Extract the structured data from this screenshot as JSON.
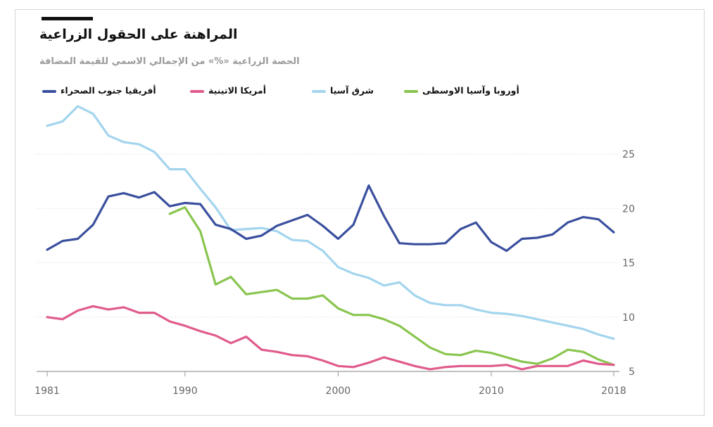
{
  "title": "المراهنة على الحقول الزراعية",
  "subtitle": "الحصة الزراعية «%» من الإجمالي الاسمي للقيمة المضافة",
  "chart_data": {
    "type": "line",
    "title": "المراهنة على الحقول الزراعية",
    "subtitle": "الحصة الزراعية «%» من الإجمالي الاسمي للقيمة المضافة",
    "xlabel": "",
    "ylabel": "",
    "xlim": [
      1981,
      2018
    ],
    "ylim": [
      5,
      29.5
    ],
    "y_ticks": [
      5,
      10,
      15,
      20,
      25
    ],
    "x_ticks": [
      1981,
      1990,
      2000,
      2010,
      2018
    ],
    "grid": true,
    "legend_position": "top",
    "series": [
      {
        "name": "أفريقيا جنوب الصحراء",
        "color": "#3a4f9e",
        "points": [
          [
            1981,
            16.2
          ],
          [
            1982,
            17.0
          ],
          [
            1983,
            17.2
          ],
          [
            1984,
            18.5
          ],
          [
            1985,
            21.1
          ],
          [
            1986,
            21.4
          ],
          [
            1987,
            21.0
          ],
          [
            1988,
            21.5
          ],
          [
            1989,
            20.2
          ],
          [
            1990,
            20.5
          ],
          [
            1991,
            20.4
          ],
          [
            1992,
            18.5
          ],
          [
            1993,
            18.1
          ],
          [
            1994,
            17.2
          ],
          [
            1995,
            17.5
          ],
          [
            1996,
            18.4
          ],
          [
            1997,
            18.9
          ],
          [
            1998,
            19.4
          ],
          [
            1999,
            18.4
          ],
          [
            2000,
            17.2
          ],
          [
            2001,
            18.5
          ],
          [
            2002,
            22.1
          ],
          [
            2003,
            19.3
          ],
          [
            2004,
            16.8
          ],
          [
            2005,
            16.7
          ],
          [
            2006,
            16.7
          ],
          [
            2007,
            16.8
          ],
          [
            2008,
            18.1
          ],
          [
            2009,
            18.7
          ],
          [
            2010,
            16.9
          ],
          [
            2011,
            16.1
          ],
          [
            2012,
            17.2
          ],
          [
            2013,
            17.3
          ],
          [
            2014,
            17.6
          ],
          [
            2015,
            18.7
          ],
          [
            2016,
            19.2
          ],
          [
            2017,
            19.0
          ],
          [
            2018,
            17.8
          ]
        ]
      },
      {
        "name": "أمريكا الاتينية",
        "color": "#e05b8c",
        "points": [
          [
            1981,
            10.0
          ],
          [
            1982,
            9.8
          ],
          [
            1983,
            10.6
          ],
          [
            1984,
            11.0
          ],
          [
            1985,
            10.7
          ],
          [
            1986,
            10.9
          ],
          [
            1987,
            10.4
          ],
          [
            1988,
            10.4
          ],
          [
            1989,
            9.6
          ],
          [
            1990,
            9.2
          ],
          [
            1991,
            8.7
          ],
          [
            1992,
            8.3
          ],
          [
            1993,
            7.6
          ],
          [
            1994,
            8.2
          ],
          [
            1995,
            7.0
          ],
          [
            1996,
            6.8
          ],
          [
            1997,
            6.5
          ],
          [
            1998,
            6.4
          ],
          [
            1999,
            6.0
          ],
          [
            2000,
            5.5
          ],
          [
            2001,
            5.4
          ],
          [
            2002,
            5.8
          ],
          [
            2003,
            6.3
          ],
          [
            2004,
            5.9
          ],
          [
            2005,
            5.5
          ],
          [
            2006,
            5.2
          ],
          [
            2007,
            5.4
          ],
          [
            2008,
            5.5
          ],
          [
            2009,
            5.5
          ],
          [
            2010,
            5.5
          ],
          [
            2011,
            5.6
          ],
          [
            2012,
            5.2
          ],
          [
            2013,
            5.5
          ],
          [
            2014,
            5.5
          ],
          [
            2015,
            5.5
          ],
          [
            2016,
            6.0
          ],
          [
            2017,
            5.7
          ],
          [
            2018,
            5.6
          ]
        ]
      },
      {
        "name": "شرق آسيا",
        "color": "#a3d5ee",
        "points": [
          [
            1981,
            27.6
          ],
          [
            1982,
            28.0
          ],
          [
            1983,
            29.4
          ],
          [
            1984,
            28.7
          ],
          [
            1985,
            26.7
          ],
          [
            1986,
            26.1
          ],
          [
            1987,
            25.9
          ],
          [
            1988,
            25.2
          ],
          [
            1989,
            23.6
          ],
          [
            1990,
            23.6
          ],
          [
            1991,
            21.8
          ],
          [
            1992,
            20.1
          ],
          [
            1993,
            18.0
          ],
          [
            1994,
            18.1
          ],
          [
            1995,
            18.2
          ],
          [
            1996,
            17.9
          ],
          [
            1997,
            17.1
          ],
          [
            1998,
            17.0
          ],
          [
            1999,
            16.1
          ],
          [
            2000,
            14.6
          ],
          [
            2001,
            14.0
          ],
          [
            2002,
            13.6
          ],
          [
            2003,
            12.9
          ],
          [
            2004,
            13.2
          ],
          [
            2005,
            12.0
          ],
          [
            2006,
            11.3
          ],
          [
            2007,
            11.1
          ],
          [
            2008,
            11.1
          ],
          [
            2009,
            10.7
          ],
          [
            2010,
            10.4
          ],
          [
            2011,
            10.3
          ],
          [
            2012,
            10.1
          ],
          [
            2013,
            9.8
          ],
          [
            2014,
            9.5
          ],
          [
            2015,
            9.2
          ],
          [
            2016,
            8.9
          ],
          [
            2017,
            8.4
          ],
          [
            2018,
            8.0
          ]
        ]
      },
      {
        "name": "أوروبا وآسيا الاوسطى",
        "color": "#8ac54f",
        "points": [
          [
            1989,
            19.5
          ],
          [
            1990,
            20.1
          ],
          [
            1991,
            17.9
          ],
          [
            1992,
            13.0
          ],
          [
            1993,
            13.7
          ],
          [
            1994,
            12.1
          ],
          [
            1995,
            12.3
          ],
          [
            1996,
            12.5
          ],
          [
            1997,
            11.7
          ],
          [
            1998,
            11.7
          ],
          [
            1999,
            12.0
          ],
          [
            2000,
            10.8
          ],
          [
            2001,
            10.2
          ],
          [
            2002,
            10.2
          ],
          [
            2003,
            9.8
          ],
          [
            2004,
            9.2
          ],
          [
            2005,
            8.2
          ],
          [
            2006,
            7.2
          ],
          [
            2007,
            6.6
          ],
          [
            2008,
            6.5
          ],
          [
            2009,
            6.9
          ],
          [
            2010,
            6.7
          ],
          [
            2011,
            6.3
          ],
          [
            2012,
            5.9
          ],
          [
            2013,
            5.7
          ],
          [
            2014,
            6.2
          ],
          [
            2015,
            7.0
          ],
          [
            2016,
            6.8
          ],
          [
            2017,
            6.1
          ],
          [
            2018,
            5.6
          ]
        ]
      }
    ]
  }
}
